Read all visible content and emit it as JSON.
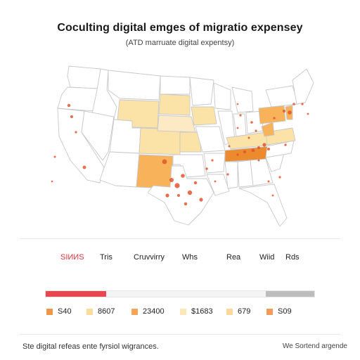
{
  "title": "Coculting digital emges of migratio expensey",
  "subtitle": "(ATD marruate digital expentsy)",
  "colors": {
    "state_fill": "#ffffff",
    "state_stroke": "#c8c8c8",
    "light_yellow": "#fbe3a8",
    "pale_yellow": "#fde9c4",
    "orange": "#f7b25a",
    "deep_orange": "#ec8a2e",
    "dot_red": "#e0552e",
    "bar_red": "#e8474e",
    "bar_gray": "#bdbdbd",
    "accent_red": "#d8333a"
  },
  "legend_labels": [
    "SIИИS",
    "Tris",
    "Cruvvirry",
    "Whs",
    "Rea",
    "Wiid",
    "Rds"
  ],
  "scale_bar": {
    "segments": [
      {
        "from": 0,
        "to": 0.225,
        "color": "#e8474e"
      },
      {
        "from": 0.225,
        "to": 0.82,
        "color": "#f4f4f4"
      },
      {
        "from": 0.82,
        "to": 1,
        "color": "#bdbdbd"
      }
    ]
  },
  "swatches": [
    {
      "label": "S40",
      "color": "#f0974a"
    },
    {
      "label": "8607",
      "color": "#fbdc9c"
    },
    {
      "label": "23400",
      "color": "#f4a454"
    },
    {
      "label": "$1683",
      "color": "#fde7b8"
    },
    {
      "label": "679",
      "color": "#fbd99a"
    },
    {
      "label": "S09",
      "color": "#f39a5a"
    }
  ],
  "footer": {
    "left": "Ste digital refeas ente fyrsiol wigrances.",
    "right": "We Sortend argende"
  }
}
